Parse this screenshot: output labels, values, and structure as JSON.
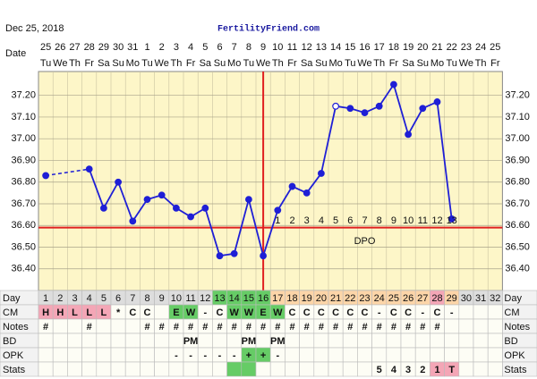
{
  "header": {
    "date": "Dec 25, 2018",
    "site": "FertilityFriend.com"
  },
  "chart_data": {
    "type": "line",
    "date_label": "Date",
    "dates": [
      "25",
      "26",
      "27",
      "28",
      "29",
      "30",
      "31",
      "1",
      "2",
      "3",
      "4",
      "5",
      "6",
      "7",
      "8",
      "9",
      "10",
      "11",
      "12",
      "13",
      "14",
      "15",
      "16",
      "17",
      "18",
      "19",
      "20",
      "21",
      "22",
      "23",
      "24",
      "25"
    ],
    "weekdays": [
      "Tu",
      "We",
      "Th",
      "Fr",
      "Sa",
      "Su",
      "Mo",
      "Tu",
      "We",
      "Th",
      "Fr",
      "Sa",
      "Su",
      "Mo",
      "Tu",
      "We",
      "Th",
      "Fr",
      "Sa",
      "Su",
      "Mo",
      "Tu",
      "We",
      "Th",
      "Fr",
      "Sa",
      "Su",
      "Mo",
      "Tu",
      "We",
      "Th",
      "Fr"
    ],
    "values": [
      36.83,
      null,
      null,
      36.86,
      36.68,
      36.8,
      36.62,
      36.72,
      36.74,
      36.68,
      36.64,
      36.68,
      36.46,
      36.47,
      36.72,
      36.46,
      36.67,
      36.78,
      36.75,
      36.84,
      37.15,
      37.14,
      37.12,
      37.15,
      37.25,
      37.02,
      37.14,
      37.17,
      36.63,
      null,
      null,
      null
    ],
    "color": "#1f1fd6",
    "open_point": 20,
    "ylim": [
      36.3,
      37.31
    ],
    "yticks": [
      {
        "value": 36.4,
        "label": "36.40"
      },
      {
        "value": 36.5,
        "label": "36.50"
      },
      {
        "value": 36.6,
        "label": "36.60"
      },
      {
        "value": 36.7,
        "label": "36.70"
      },
      {
        "value": 36.8,
        "label": "36.80"
      },
      {
        "value": 36.9,
        "label": "36.90"
      },
      {
        "value": 37.0,
        "label": "37.00"
      },
      {
        "value": 37.1,
        "label": "37.10"
      },
      {
        "value": 37.2,
        "label": "37.20"
      }
    ],
    "coverline": 36.59,
    "ovulation_day": 16,
    "marker_color": "#e02020",
    "dpo": [
      null,
      null,
      null,
      null,
      null,
      null,
      null,
      null,
      null,
      null,
      null,
      null,
      null,
      null,
      null,
      null,
      1,
      2,
      3,
      4,
      5,
      6,
      7,
      8,
      9,
      10,
      11,
      12,
      13,
      null,
      null,
      null
    ],
    "dpo_title": "DPO",
    "rows": [
      {
        "label": "Day",
        "cells": [
          1,
          2,
          3,
          4,
          5,
          6,
          7,
          8,
          9,
          10,
          11,
          12,
          13,
          14,
          15,
          16,
          17,
          18,
          19,
          20,
          21,
          22,
          23,
          24,
          25,
          26,
          27,
          28,
          29,
          30,
          31,
          32
        ],
        "fills": [
          "#dddddd",
          "#dddddd",
          "#dddddd",
          "#dddddd",
          "#dddddd",
          "#dddddd",
          "#dddddd",
          "#dddddd",
          "#dddddd",
          "#dddddd",
          "#dddddd",
          "#dddddd",
          "#66cc66",
          "#66cc66",
          "#66cc66",
          "#66cc66",
          "#fcd5a8",
          "#fcd5a8",
          "#fcd5a8",
          "#fcd5a8",
          "#fcd5a8",
          "#fcd5a8",
          "#fcd5a8",
          "#fcd5a8",
          "#fcd5a8",
          "#fcd5a8",
          "#fcd5a8",
          "#f4a6b6",
          "#fcd5a8",
          "#dddddd",
          "#dddddd",
          "#dddddd"
        ]
      },
      {
        "label": "CM",
        "cells": [
          "H",
          "H",
          "L",
          "L",
          "L",
          "*",
          "C",
          "C",
          null,
          "E",
          "W",
          "-",
          "C",
          "W",
          "W",
          "E",
          "W",
          "C",
          "C",
          "C",
          "C",
          "C",
          "C",
          "-",
          "C",
          "C",
          "-",
          "C",
          "-",
          null,
          null,
          null
        ],
        "fills": [
          "#f4a6b6",
          "#f4a6b6",
          "#f4a6b6",
          "#f4a6b6",
          "#f4a6b6",
          null,
          null,
          null,
          null,
          "#66cc66",
          "#66cc66",
          null,
          null,
          "#66cc66",
          "#66cc66",
          "#66cc66",
          "#66cc66",
          null,
          null,
          null,
          null,
          null,
          null,
          null,
          null,
          null,
          null,
          null,
          null,
          null,
          null,
          null
        ]
      },
      {
        "label": "Notes",
        "cells": [
          "#",
          null,
          null,
          "#",
          null,
          null,
          null,
          "#",
          "#",
          "#",
          "#",
          "#",
          "#",
          "#",
          "#",
          "#",
          "#",
          "#",
          "#",
          "#",
          "#",
          "#",
          "#",
          "#",
          "#",
          "#",
          "#",
          "#",
          null,
          null,
          null,
          null
        ]
      },
      {
        "label": "BD",
        "cells": [
          null,
          null,
          null,
          null,
          null,
          null,
          null,
          null,
          null,
          null,
          "PM",
          null,
          null,
          null,
          "PM",
          null,
          "PM",
          null,
          null,
          null,
          null,
          null,
          null,
          null,
          null,
          null,
          null,
          null,
          null,
          null,
          null,
          null
        ]
      },
      {
        "label": "OPK",
        "cells": [
          null,
          null,
          null,
          null,
          null,
          null,
          null,
          null,
          null,
          "-",
          "-",
          "-",
          "-",
          "-",
          "+",
          "+",
          "-",
          null,
          null,
          null,
          null,
          null,
          null,
          null,
          null,
          null,
          null,
          null,
          null,
          null,
          null,
          null
        ],
        "fills": [
          null,
          null,
          null,
          null,
          null,
          null,
          null,
          null,
          null,
          null,
          null,
          null,
          null,
          null,
          "#66cc66",
          "#66cc66",
          null,
          null,
          null,
          null,
          null,
          null,
          null,
          null,
          null,
          null,
          null,
          null,
          null,
          null,
          null,
          null
        ]
      },
      {
        "label": "Stats",
        "cells": [
          null,
          null,
          null,
          null,
          null,
          null,
          null,
          null,
          null,
          null,
          null,
          null,
          null,
          null,
          null,
          null,
          null,
          null,
          null,
          null,
          null,
          null,
          null,
          5,
          4,
          3,
          2,
          1,
          "T",
          null,
          null,
          null
        ],
        "fills": [
          null,
          null,
          null,
          null,
          null,
          null,
          null,
          null,
          null,
          null,
          null,
          null,
          null,
          "#66cc66",
          "#66cc66",
          null,
          null,
          null,
          null,
          null,
          null,
          null,
          null,
          null,
          null,
          null,
          null,
          "#f4a6b6",
          "#f4a6b6",
          null,
          null,
          null
        ]
      }
    ]
  }
}
